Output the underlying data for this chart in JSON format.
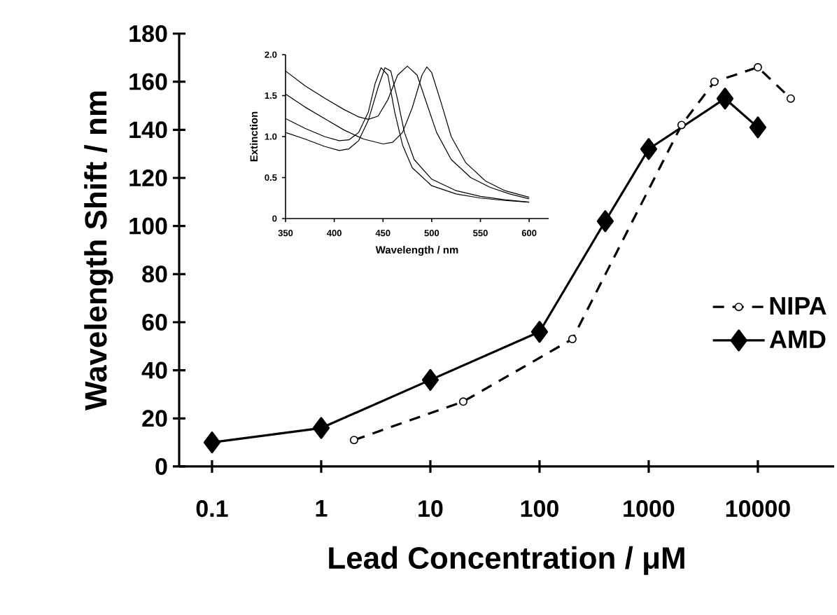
{
  "chart_data": [
    {
      "type": "line",
      "xlabel": "Lead Concentration / μM",
      "ylabel": "Wavelength Shift / nm",
      "log": "x",
      "xlim": [
        0.05,
        50000
      ],
      "ylim": [
        0,
        180
      ],
      "xticks": [
        0.1,
        1,
        10,
        100,
        1000,
        10000
      ],
      "yticks": [
        0,
        20,
        40,
        60,
        80,
        100,
        120,
        140,
        160,
        180
      ],
      "legend": "right",
      "series": [
        {
          "name": "NIPA",
          "color": "#000000",
          "marker": "circle",
          "line_style": "dashed",
          "x": [
            2,
            20,
            200,
            2000,
            4000,
            10000,
            20000
          ],
          "values": [
            11,
            27,
            53,
            142,
            160,
            166,
            153
          ]
        },
        {
          "name": "AMD",
          "color": "#000000",
          "marker": "diamond",
          "line_style": "solid",
          "x": [
            0.1,
            1,
            10,
            100,
            400,
            1000,
            5000,
            10000
          ],
          "values": [
            10,
            16,
            36,
            56,
            102,
            132,
            153,
            141
          ]
        }
      ]
    },
    {
      "type": "line",
      "xlabel": "Wavelength / nm",
      "ylabel": "Extinction",
      "xlim": [
        350,
        620
      ],
      "ylim": [
        0,
        2.0
      ],
      "xticks": [
        350,
        400,
        450,
        500,
        550,
        600
      ],
      "yticks": [
        0,
        0.5,
        {
          "value": 1,
          "label": "1.0"
        },
        1.5,
        {
          "value": 2,
          "label": "2.0"
        }
      ],
      "series": [
        {
          "color": "#000000",
          "marker": "none",
          "line_style": "solid",
          "x": [
            350,
            370,
            390,
            410,
            425,
            435,
            445,
            455,
            465,
            475,
            485,
            495,
            505,
            520,
            540,
            560,
            580,
            600
          ],
          "values": [
            1.8,
            1.62,
            1.47,
            1.33,
            1.24,
            1.21,
            1.25,
            1.45,
            1.75,
            1.86,
            1.75,
            1.4,
            1.05,
            0.72,
            0.5,
            0.38,
            0.3,
            0.24
          ]
        },
        {
          "color": "#000000",
          "marker": "none",
          "line_style": "solid",
          "x": [
            350,
            370,
            390,
            410,
            430,
            450,
            460,
            470,
            480,
            490,
            495,
            500,
            510,
            520,
            535,
            555,
            575,
            600
          ],
          "values": [
            1.52,
            1.36,
            1.22,
            1.08,
            0.97,
            0.91,
            0.93,
            1.05,
            1.35,
            1.75,
            1.85,
            1.78,
            1.4,
            1.0,
            0.68,
            0.46,
            0.34,
            0.26
          ]
        },
        {
          "color": "#000000",
          "marker": "none",
          "line_style": "solid",
          "x": [
            350,
            370,
            390,
            405,
            415,
            425,
            435,
            442,
            448,
            455,
            462,
            470,
            480,
            500,
            525,
            550,
            575,
            600
          ],
          "values": [
            1.22,
            1.1,
            1.0,
            0.95,
            0.96,
            1.05,
            1.3,
            1.65,
            1.84,
            1.75,
            1.3,
            0.9,
            0.62,
            0.4,
            0.3,
            0.25,
            0.22,
            0.2
          ]
        },
        {
          "color": "#000000",
          "marker": "none",
          "line_style": "solid",
          "x": [
            350,
            370,
            390,
            405,
            415,
            425,
            435,
            445,
            452,
            458,
            465,
            472,
            482,
            500,
            525,
            550,
            575,
            600
          ],
          "values": [
            1.05,
            0.97,
            0.88,
            0.83,
            0.85,
            0.95,
            1.2,
            1.6,
            1.84,
            1.8,
            1.45,
            1.05,
            0.72,
            0.48,
            0.34,
            0.27,
            0.23,
            0.2
          ]
        }
      ]
    }
  ]
}
